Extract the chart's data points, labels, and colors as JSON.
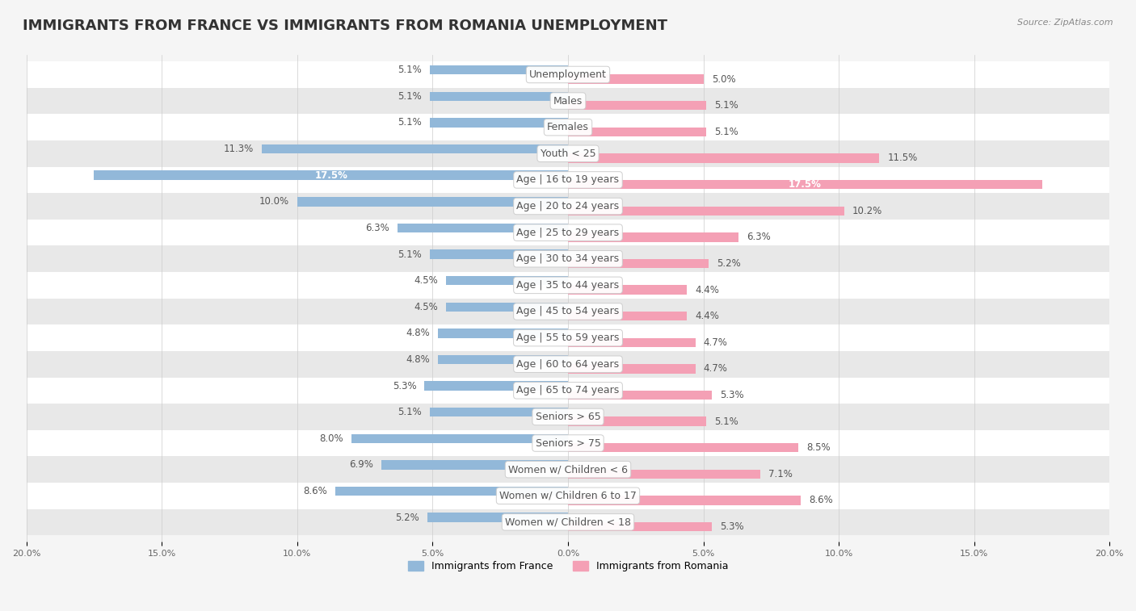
{
  "title": "IMMIGRANTS FROM FRANCE VS IMMIGRANTS FROM ROMANIA UNEMPLOYMENT",
  "source": "Source: ZipAtlas.com",
  "categories": [
    "Unemployment",
    "Males",
    "Females",
    "Youth < 25",
    "Age | 16 to 19 years",
    "Age | 20 to 24 years",
    "Age | 25 to 29 years",
    "Age | 30 to 34 years",
    "Age | 35 to 44 years",
    "Age | 45 to 54 years",
    "Age | 55 to 59 years",
    "Age | 60 to 64 years",
    "Age | 65 to 74 years",
    "Seniors > 65",
    "Seniors > 75",
    "Women w/ Children < 6",
    "Women w/ Children 6 to 17",
    "Women w/ Children < 18"
  ],
  "france_values": [
    5.1,
    5.1,
    5.1,
    11.3,
    17.5,
    10.0,
    6.3,
    5.1,
    4.5,
    4.5,
    4.8,
    4.8,
    5.3,
    5.1,
    8.0,
    6.9,
    8.6,
    5.2
  ],
  "romania_values": [
    5.0,
    5.1,
    5.1,
    11.5,
    17.5,
    10.2,
    6.3,
    5.2,
    4.4,
    4.4,
    4.7,
    4.7,
    5.3,
    5.1,
    8.5,
    7.1,
    8.6,
    5.3
  ],
  "france_color": "#92b8d9",
  "romania_color": "#f4a0b5",
  "france_label": "Immigrants from France",
  "romania_label": "Immigrants from Romania",
  "max_value": 20.0,
  "bar_height": 0.35,
  "title_fontsize": 13,
  "label_fontsize": 9,
  "value_fontsize": 8.5,
  "inside_label_idx": 4
}
